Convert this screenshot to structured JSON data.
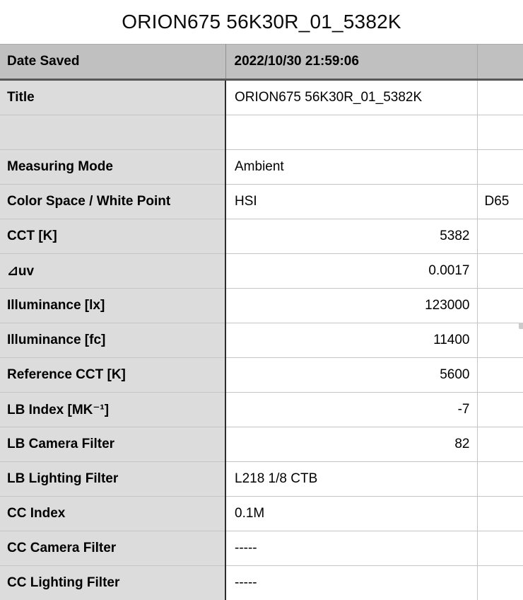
{
  "title": "ORION675 56K30R_01_5382K",
  "colors": {
    "header_row_bg": "#bfc0bf",
    "label_column_bg": "#dcdcdc",
    "header_divider": "#565656",
    "label_value_divider": "#2d2d2d",
    "grid_line": "#c5c5c5",
    "text": "#000000",
    "page_bg": "#ffffff"
  },
  "table": {
    "columns": [
      "label",
      "value",
      "extra"
    ],
    "rows": [
      {
        "label": "Date Saved",
        "value": "2022/10/30 21:59:06",
        "align": "left",
        "header": true
      },
      {
        "label": "Title",
        "value": "ORION675 56K30R_01_5382K",
        "align": "left"
      },
      {
        "label": "",
        "value": "",
        "align": "left"
      },
      {
        "label": "Measuring Mode",
        "value": "Ambient",
        "align": "left"
      },
      {
        "label": "Color Space / White Point",
        "value": "HSI",
        "value2": "D65",
        "align": "left"
      },
      {
        "label": "CCT [K]",
        "value": "5382",
        "align": "right"
      },
      {
        "label": "⊿uv",
        "value": "0.0017",
        "align": "right"
      },
      {
        "label": "Illuminance [lx]",
        "value": "123000",
        "align": "right"
      },
      {
        "label": "Illuminance [fc]",
        "value": "11400",
        "align": "right"
      },
      {
        "label": "Reference CCT [K]",
        "value": "5600",
        "align": "right"
      },
      {
        "label": "LB Index [MK⁻¹]",
        "value": "-7",
        "align": "right"
      },
      {
        "label": "LB Camera Filter",
        "value": "82",
        "align": "right"
      },
      {
        "label": "LB Lighting Filter",
        "value": "L218 1/8 CTB",
        "align": "left"
      },
      {
        "label": "CC Index",
        "value": "0.1M",
        "align": "left"
      },
      {
        "label": "CC Camera Filter",
        "value": "-----",
        "align": "left"
      },
      {
        "label": "CC Lighting Filter",
        "value": "-----",
        "align": "left"
      }
    ]
  }
}
